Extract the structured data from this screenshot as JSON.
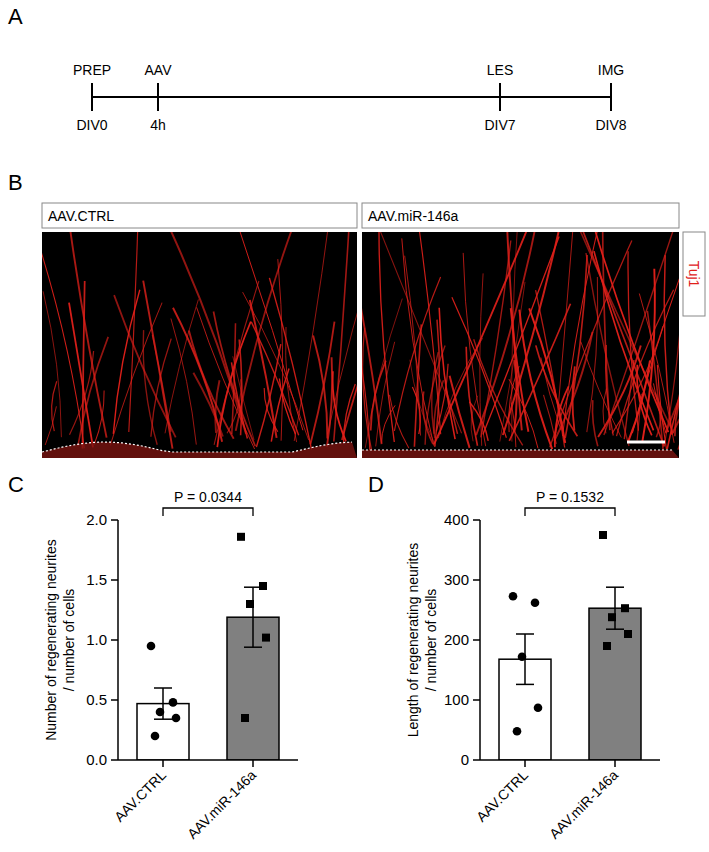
{
  "panel_labels": [
    "A",
    "B",
    "C",
    "D"
  ],
  "timeline": {
    "events": [
      {
        "label": "PREP",
        "time": "DIV0"
      },
      {
        "label": "AAV",
        "time": "4h"
      },
      {
        "label": "LES",
        "time": "DIV7"
      },
      {
        "label": "IMG",
        "time": "DIV8"
      }
    ]
  },
  "images": {
    "conditions": [
      "AAV.CTRL",
      "AAV.miR-146a"
    ],
    "stain": "Tuj1"
  },
  "chart_data": [
    {
      "type": "bar",
      "y_label": "Number of regenerating neurites / number of cells",
      "categories": [
        "AAV.CTRL",
        "AAV.miR-146a"
      ],
      "values": [
        0.47,
        1.19
      ],
      "errors": [
        0.13,
        0.25
      ],
      "colors": [
        "#ffffff",
        "#808080"
      ],
      "points": [
        {
          "marker": "circle",
          "values": [
            0.95,
            0.48,
            0.4,
            0.35,
            0.2
          ]
        },
        {
          "marker": "square",
          "values": [
            1.86,
            1.45,
            1.3,
            1.02,
            0.35
          ]
        }
      ],
      "annotation": "P = 0.0344",
      "ylim": [
        0,
        2
      ],
      "yticks": [
        {
          "value": 0,
          "label": "0.0"
        },
        {
          "value": 0.5,
          "label": "0.5"
        },
        {
          "value": 1,
          "label": "1.0"
        },
        {
          "value": 1.5,
          "label": "1.5"
        },
        {
          "value": 2,
          "label": "2.0"
        }
      ]
    },
    {
      "type": "bar",
      "y_label": "Length of regenerating neurites / number of cells",
      "categories": [
        "AAV.CTRL",
        "AAV.miR-146a"
      ],
      "values": [
        168,
        253
      ],
      "errors": [
        42,
        35
      ],
      "colors": [
        "#ffffff",
        "#808080"
      ],
      "points": [
        {
          "marker": "circle",
          "values": [
            273,
            262,
            172,
            87,
            48
          ]
        },
        {
          "marker": "square",
          "values": [
            375,
            253,
            238,
            210,
            190
          ]
        }
      ],
      "annotation": "P = 0.1532",
      "ylim": [
        0,
        400
      ],
      "yticks": [
        0,
        100,
        200,
        300,
        400
      ]
    }
  ]
}
